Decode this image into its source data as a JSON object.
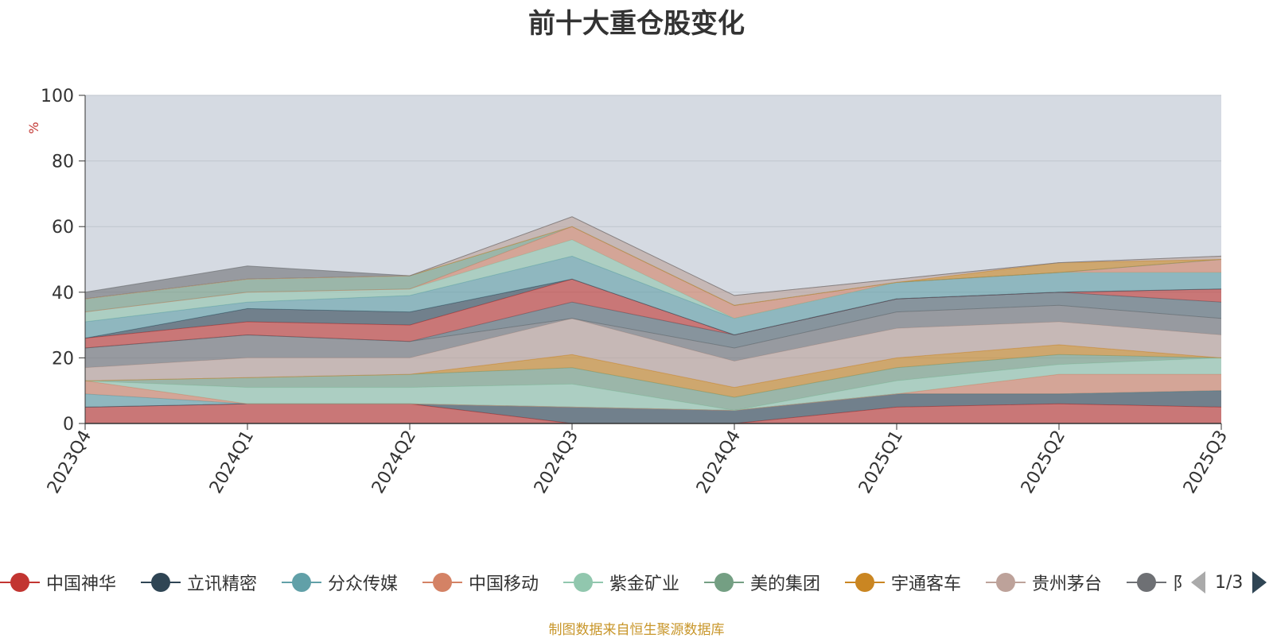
{
  "chart_data": {
    "type": "area",
    "stacked": true,
    "title": "前十大重仓股变化",
    "ylabel": "%",
    "ylim": [
      0,
      100
    ],
    "yticks": [
      0,
      20,
      40,
      60,
      80,
      100
    ],
    "categories": [
      "2023Q4",
      "2024Q1",
      "2024Q2",
      "2024Q3",
      "2024Q4",
      "2025Q1",
      "2025Q2",
      "2025Q3"
    ],
    "grid": true,
    "legend_position": "bottom",
    "series": [
      {
        "name": "中国神华",
        "color": "#c23531",
        "values": [
          5,
          6,
          6,
          0,
          0,
          5,
          6,
          5
        ]
      },
      {
        "name": "立讯精密",
        "color": "#2f4554",
        "values": [
          0,
          0,
          0,
          5,
          4,
          4,
          3,
          5
        ]
      },
      {
        "name": "分众传媒",
        "color": "#61a0a8",
        "values": [
          4,
          0,
          0,
          0,
          0,
          0,
          0,
          0
        ]
      },
      {
        "name": "中国移动",
        "color": "#d48265",
        "values": [
          4,
          0,
          0,
          0,
          0,
          0,
          6,
          5
        ]
      },
      {
        "name": "紫金矿业",
        "color": "#91c7ae",
        "values": [
          0,
          5,
          5,
          7,
          0,
          4,
          3,
          5
        ]
      },
      {
        "name": "美的集团",
        "color": "#749f83",
        "values": [
          0,
          3,
          4,
          5,
          4,
          4,
          3,
          0
        ]
      },
      {
        "name": "宇通客车",
        "color": "#ca8622",
        "values": [
          0,
          0,
          0,
          4,
          3,
          3,
          3,
          0
        ]
      },
      {
        "name": "贵州茅台",
        "color": "#bda29a",
        "values": [
          4,
          6,
          5,
          11,
          8,
          9,
          7,
          7
        ]
      },
      {
        "name": "",
        "color": "#6e7074",
        "values": [
          6,
          7,
          5,
          0,
          4,
          5,
          5,
          5
        ]
      },
      {
        "name": "",
        "color": "#546570",
        "values": [
          0,
          0,
          0,
          5,
          4,
          4,
          4,
          5
        ]
      },
      {
        "name": "",
        "color": "#c23531",
        "values": [
          3,
          4,
          5,
          7,
          0,
          0,
          0,
          4
        ]
      },
      {
        "name": "",
        "color": "#2f4554",
        "values": [
          0,
          4,
          4,
          0,
          0,
          0,
          0,
          0
        ]
      },
      {
        "name": "",
        "color": "#61a0a8",
        "values": [
          5,
          2,
          5,
          7,
          5,
          5,
          6,
          5
        ]
      },
      {
        "name": "",
        "color": "#91c7ae",
        "values": [
          3,
          3,
          2,
          5,
          0,
          0,
          0,
          0
        ]
      },
      {
        "name": "",
        "color": "#d48265",
        "values": [
          0,
          0,
          0,
          4,
          4,
          0,
          0,
          4
        ]
      },
      {
        "name": "",
        "color": "#749f83",
        "values": [
          4,
          4,
          4,
          0,
          0,
          0,
          0,
          0
        ]
      },
      {
        "name": "",
        "color": "#ca8622",
        "values": [
          0,
          0,
          0,
          0,
          0,
          0,
          3,
          0
        ]
      },
      {
        "name": "",
        "color": "#bda29a",
        "values": [
          0,
          0,
          0,
          3,
          3,
          1,
          0,
          1
        ]
      },
      {
        "name": "",
        "color": "#6e7074",
        "values": [
          2,
          4,
          0,
          0,
          0,
          0,
          0,
          0
        ]
      }
    ]
  },
  "legend": {
    "items": [
      {
        "name": "中国神华",
        "color": "#c23531"
      },
      {
        "name": "立讯精密",
        "color": "#2f4554"
      },
      {
        "name": "分众传媒",
        "color": "#61a0a8"
      },
      {
        "name": "中国移动",
        "color": "#d48265"
      },
      {
        "name": "紫金矿业",
        "color": "#91c7ae"
      },
      {
        "name": "美的集团",
        "color": "#749f83"
      },
      {
        "name": "宇通客车",
        "color": "#ca8622"
      },
      {
        "name": "贵州茅台",
        "color": "#bda29a"
      },
      {
        "name": "阝",
        "color": "#6e7074"
      }
    ],
    "page_indicator": "1/3"
  },
  "source_note": "制图数据来自恒生聚源数据库"
}
